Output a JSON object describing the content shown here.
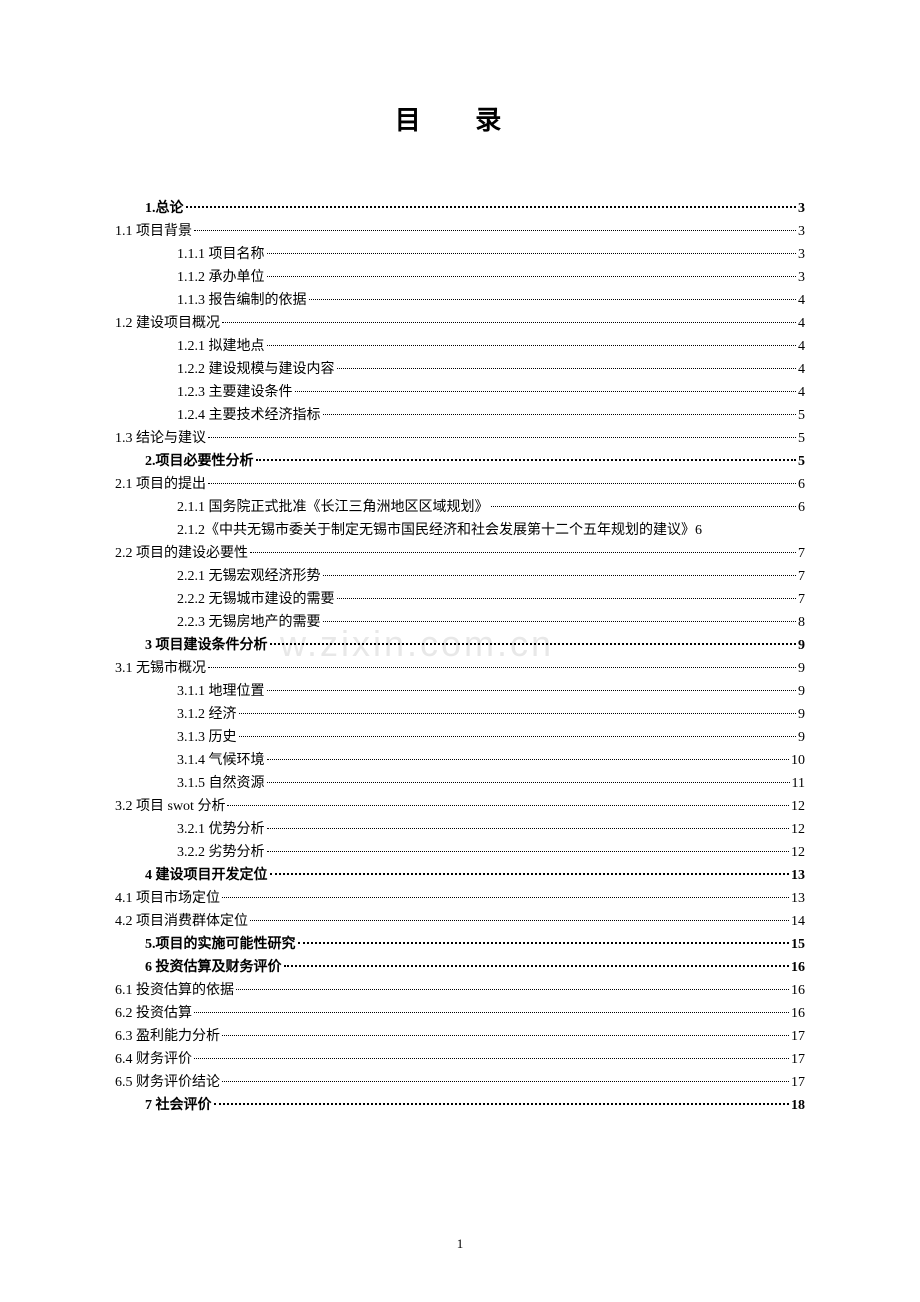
{
  "title": "目 录",
  "watermark": "w.zixin.com.cn",
  "pageNumber": "1",
  "entries": [
    {
      "label": "1.总论",
      "page": "3",
      "indent": 1,
      "bold": true
    },
    {
      "label": "1.1 项目背景",
      "page": "3",
      "indent": 0,
      "bold": false
    },
    {
      "label": "1.1.1 项目名称",
      "page": "3",
      "indent": 2,
      "bold": false
    },
    {
      "label": "1.1.2 承办单位",
      "page": "3",
      "indent": 2,
      "bold": false
    },
    {
      "label": "1.1.3 报告编制的依据",
      "page": "4",
      "indent": 2,
      "bold": false
    },
    {
      "label": "1.2 建设项目概况",
      "page": "4",
      "indent": 0,
      "bold": false
    },
    {
      "label": "1.2.1 拟建地点",
      "page": "4",
      "indent": 2,
      "bold": false
    },
    {
      "label": "1.2.2 建设规模与建设内容",
      "page": "4",
      "indent": 2,
      "bold": false
    },
    {
      "label": "1.2.3 主要建设条件",
      "page": "4",
      "indent": 2,
      "bold": false
    },
    {
      "label": "1.2.4 主要技术经济指标",
      "page": "5",
      "indent": 2,
      "bold": false
    },
    {
      "label": "1.3 结论与建议",
      "page": "5",
      "indent": 0,
      "bold": false
    },
    {
      "label": "2.项目必要性分析",
      "page": "5",
      "indent": 1,
      "bold": true
    },
    {
      "label": "2.1 项目的提出",
      "page": "6",
      "indent": 0,
      "bold": false
    },
    {
      "label": "2.1.1  国务院正式批准《长江三角洲地区区域规划》",
      "page": "6",
      "indent": 2,
      "bold": false
    },
    {
      "label": "2.1.2《中共无锡市委关于制定无锡市国民经济和社会发展第十二个五年规划的建议》6",
      "page": "",
      "indent": 2,
      "bold": false,
      "nopage": true
    },
    {
      "label": "2.2 项目的建设必要性",
      "page": "7",
      "indent": 0,
      "bold": false
    },
    {
      "label": "2.2.1 无锡宏观经济形势",
      "page": "7",
      "indent": 2,
      "bold": false
    },
    {
      "label": "2.2.2  无锡城市建设的需要",
      "page": "7",
      "indent": 2,
      "bold": false
    },
    {
      "label": "2.2.3 无锡房地产的需要",
      "page": "8",
      "indent": 2,
      "bold": false
    },
    {
      "label": "3 项目建设条件分析",
      "page": "9",
      "indent": 1,
      "bold": true
    },
    {
      "label": "3.1 无锡市概况",
      "page": "9",
      "indent": 0,
      "bold": false
    },
    {
      "label": "3.1.1 地理位置",
      "page": "9",
      "indent": 2,
      "bold": false
    },
    {
      "label": "3.1.2 经济",
      "page": "9",
      "indent": 2,
      "bold": false
    },
    {
      "label": "3.1.3 历史",
      "page": "9",
      "indent": 2,
      "bold": false
    },
    {
      "label": "3.1.4 气候环境",
      "page": "10",
      "indent": 2,
      "bold": false
    },
    {
      "label": "3.1.5 自然资源",
      "page": "11",
      "indent": 2,
      "bold": false
    },
    {
      "label": "3.2 项目 swot 分析",
      "page": "12",
      "indent": 0,
      "bold": false
    },
    {
      "label": "3.2.1 优势分析",
      "page": "12",
      "indent": 2,
      "bold": false
    },
    {
      "label": "3.2.2 劣势分析",
      "page": "12",
      "indent": 2,
      "bold": false
    },
    {
      "label": "4 建设项目开发定位",
      "page": "13",
      "indent": 1,
      "bold": true
    },
    {
      "label": "4.1 项目市场定位",
      "page": "13",
      "indent": 0,
      "bold": false
    },
    {
      "label": "4.2 项目消费群体定位",
      "page": "14",
      "indent": 0,
      "bold": false
    },
    {
      "label": "5.项目的实施可能性研究",
      "page": "15",
      "indent": 1,
      "bold": true
    },
    {
      "label": "6 投资估算及财务评价",
      "page": "16",
      "indent": 1,
      "bold": true
    },
    {
      "label": "6.1 投资估算的依据",
      "page": "16",
      "indent": 0,
      "bold": false
    },
    {
      "label": "6.2 投资估算",
      "page": "16",
      "indent": 0,
      "bold": false
    },
    {
      "label": "6.3 盈利能力分析",
      "page": "17",
      "indent": 0,
      "bold": false
    },
    {
      "label": "6.4 财务评价",
      "page": "17",
      "indent": 0,
      "bold": false
    },
    {
      "label": "6.5 财务评价结论",
      "page": "17",
      "indent": 0,
      "bold": false
    },
    {
      "label": "7  社会评价",
      "page": "18",
      "indent": 1,
      "bold": true
    }
  ]
}
